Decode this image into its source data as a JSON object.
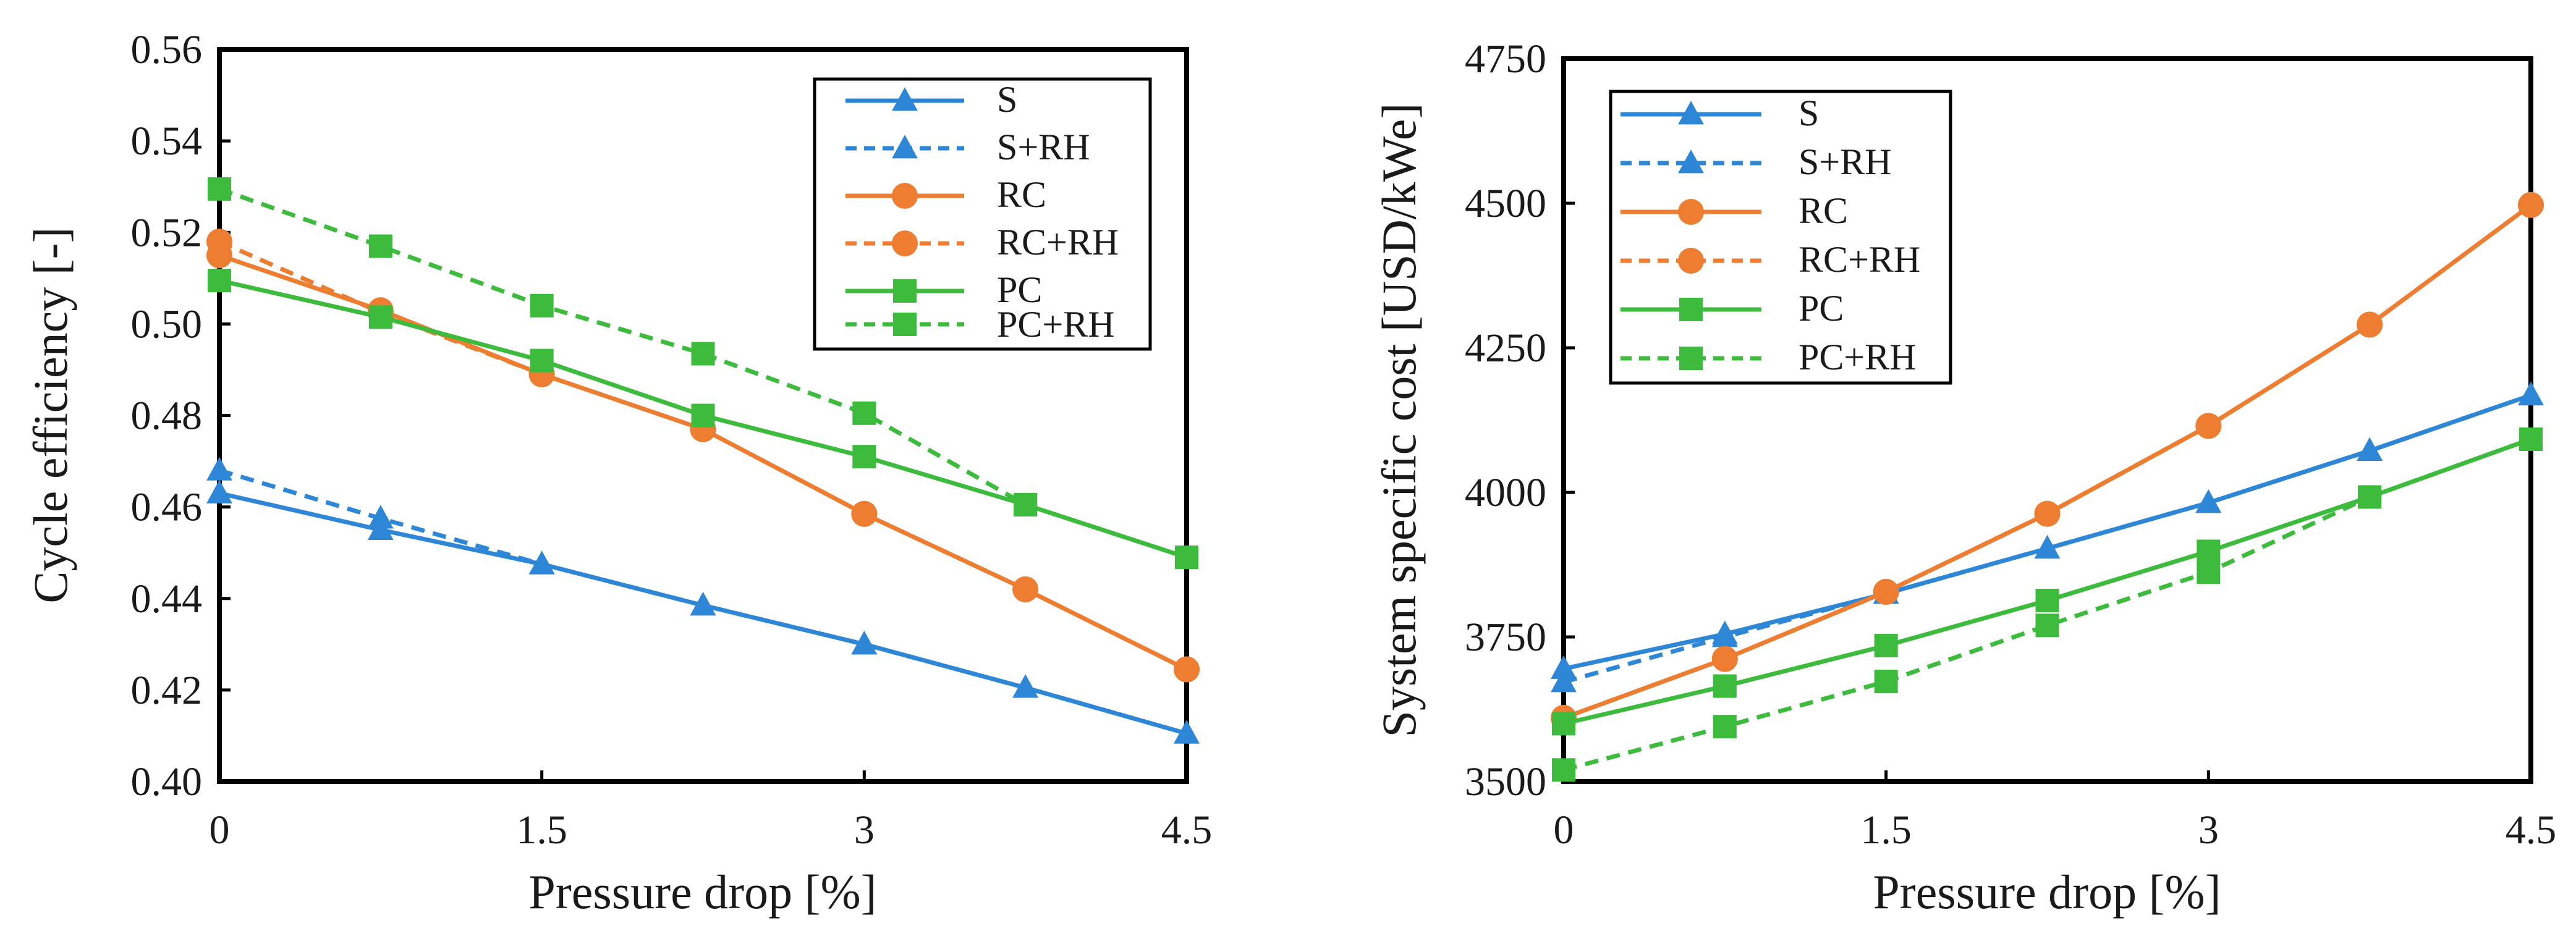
{
  "chart_data": [
    {
      "type": "line",
      "title": "",
      "xlabel": "Pressure drop [%]",
      "ylabel": "Cycle efficiency [-]",
      "xlim": [
        0,
        4.5
      ],
      "ylim": [
        0.4,
        0.56
      ],
      "xticks": [
        "0",
        "1.5",
        "3",
        "4.5"
      ],
      "xtick_values": [
        0,
        1.5,
        3,
        4.5
      ],
      "yticks": [
        "0.40",
        "0.42",
        "0.44",
        "0.46",
        "0.48",
        "0.50",
        "0.52",
        "0.54",
        "0.56"
      ],
      "ytick_values": [
        0.4,
        0.42,
        0.44,
        0.46,
        0.48,
        0.5,
        0.52,
        0.54,
        0.56
      ],
      "legend_position": "top-right",
      "x": [
        0,
        0.75,
        1.5,
        2.25,
        3,
        3.75,
        4.5
      ],
      "series": [
        {
          "name": "S",
          "color": "#2E86D6",
          "marker": "triangle",
          "dash": "solid",
          "values": [
            0.463,
            0.455,
            0.4475,
            0.4385,
            0.43,
            0.4205,
            0.4105
          ]
        },
        {
          "name": "S+RH",
          "color": "#2E86D6",
          "marker": "triangle",
          "dash": "dashed",
          "values": [
            0.468,
            0.4575,
            0.4475,
            0.4385,
            0.43,
            0.4205,
            0.4105
          ]
        },
        {
          "name": "RC",
          "color": "#ED7D31",
          "marker": "circle",
          "dash": "solid",
          "values": [
            0.515,
            0.503,
            0.489,
            0.477,
            0.4585,
            0.442,
            0.4245
          ]
        },
        {
          "name": "RC+RH",
          "color": "#ED7D31",
          "marker": "circle",
          "dash": "dashed",
          "values": [
            0.518,
            0.5025,
            0.489,
            0.477,
            0.4585,
            0.442,
            0.4245
          ]
        },
        {
          "name": "PC",
          "color": "#3DBB3D",
          "marker": "square",
          "dash": "solid",
          "values": [
            0.5095,
            0.5015,
            0.492,
            0.48,
            0.471,
            0.4605,
            0.449
          ]
        },
        {
          "name": "PC+RH",
          "color": "#3DBB3D",
          "marker": "square",
          "dash": "dashed",
          "values": [
            0.5295,
            0.517,
            0.504,
            0.4935,
            0.4805,
            0.4605,
            0.449
          ]
        }
      ]
    },
    {
      "type": "line",
      "title": "",
      "xlabel": "Pressure drop [%]",
      "ylabel": "System specific cost [USD/kWe]",
      "xlim": [
        0,
        4.5
      ],
      "ylim": [
        3500,
        4750
      ],
      "xticks": [
        "0",
        "1.5",
        "3",
        "4.5"
      ],
      "xtick_values": [
        0,
        1.5,
        3,
        4.5
      ],
      "yticks": [
        "3500",
        "3750",
        "4000",
        "4250",
        "4500",
        "4750"
      ],
      "ytick_values": [
        3500,
        3750,
        4000,
        4250,
        4500,
        4750
      ],
      "legend_position": "top-left",
      "x": [
        0,
        0.75,
        1.5,
        2.25,
        3,
        3.75,
        4.5
      ],
      "series": [
        {
          "name": "S",
          "color": "#2E86D6",
          "marker": "triangle",
          "dash": "solid",
          "values": [
            3695,
            3755,
            3825,
            3903,
            3982,
            4072,
            4168
          ]
        },
        {
          "name": "S+RH",
          "color": "#2E86D6",
          "marker": "triangle",
          "dash": "dashed",
          "values": [
            3672,
            3750,
            3825,
            3903,
            3982,
            4072,
            4168
          ]
        },
        {
          "name": "RC",
          "color": "#ED7D31",
          "marker": "circle",
          "dash": "solid",
          "values": [
            3610,
            3712,
            3828,
            3963,
            4115,
            4290,
            4497
          ]
        },
        {
          "name": "RC+RH",
          "color": "#ED7D31",
          "marker": "circle",
          "dash": "dashed",
          "values": [
            3610,
            3712,
            3828,
            3963,
            4115,
            4290,
            4497
          ]
        },
        {
          "name": "PC",
          "color": "#3DBB3D",
          "marker": "square",
          "dash": "solid",
          "values": [
            3600,
            3665,
            3735,
            3813,
            3898,
            3992,
            4092
          ]
        },
        {
          "name": "PC+RH",
          "color": "#3DBB3D",
          "marker": "square",
          "dash": "dashed",
          "values": [
            3520,
            3595,
            3673,
            3770,
            3862,
            3992,
            4092
          ]
        }
      ]
    }
  ]
}
